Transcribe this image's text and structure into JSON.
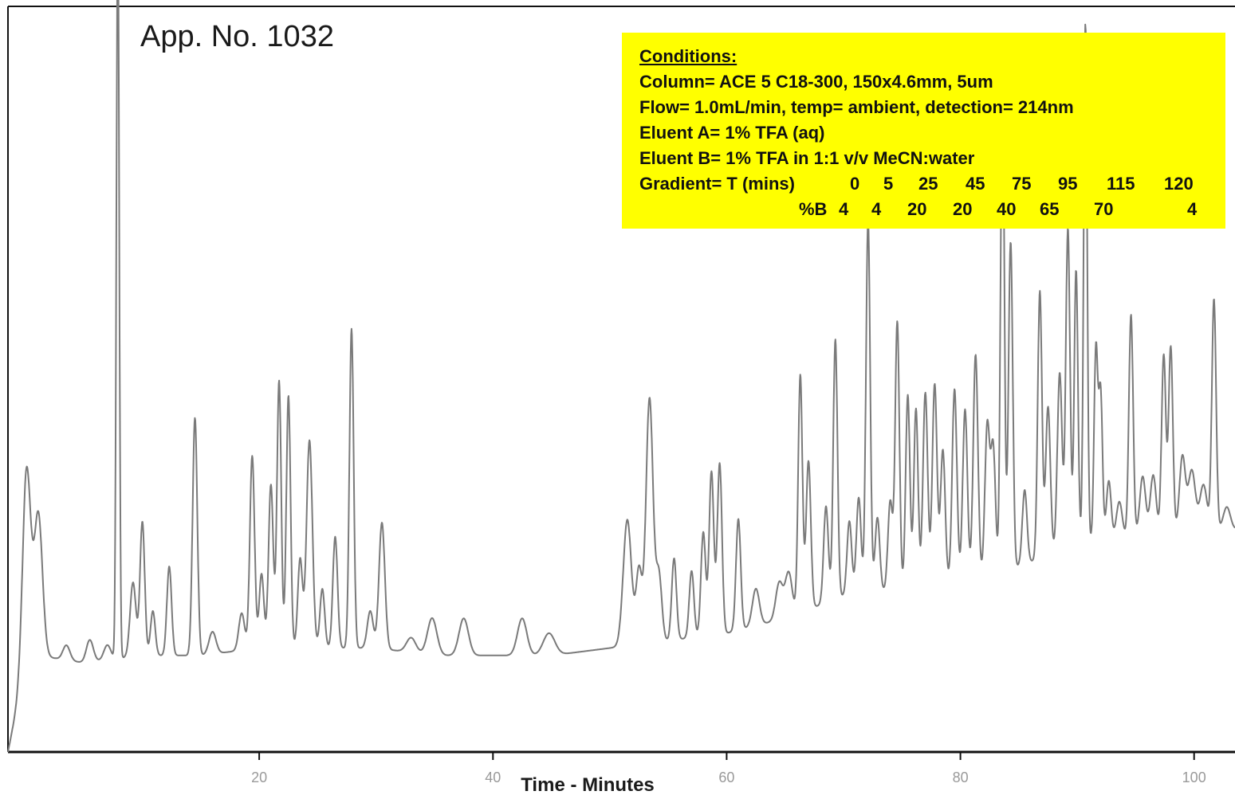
{
  "colors": {
    "trace": "#7a7a7a",
    "axis": "#111111",
    "box_bg": "#ffff00",
    "text": "#111111",
    "tick_label": "#9a9a9a"
  },
  "chart_data": {
    "type": "line",
    "title": "App. No. 1032",
    "xlabel": "Time - Minutes",
    "ylabel": "",
    "xlim": [
      -1.5,
      103.5
    ],
    "ylim": [
      0,
      1
    ],
    "x_ticks": [
      20,
      40,
      60,
      80,
      100
    ],
    "x_tick_labels": [
      "20",
      "40",
      "60",
      "80",
      "100"
    ],
    "grid": false,
    "baseline": [
      [
        -1.5,
        0.0
      ],
      [
        0,
        0.12
      ],
      [
        1,
        0.13
      ],
      [
        5,
        0.12
      ],
      [
        10,
        0.13
      ],
      [
        15,
        0.13
      ],
      [
        20,
        0.14
      ],
      [
        25,
        0.14
      ],
      [
        30,
        0.14
      ],
      [
        35,
        0.13
      ],
      [
        40,
        0.13
      ],
      [
        45,
        0.13
      ],
      [
        50,
        0.14
      ],
      [
        55,
        0.15
      ],
      [
        60,
        0.16
      ],
      [
        65,
        0.18
      ],
      [
        70,
        0.21
      ],
      [
        75,
        0.22
      ],
      [
        80,
        0.23
      ],
      [
        85,
        0.25
      ],
      [
        90,
        0.28
      ],
      [
        95,
        0.29
      ],
      [
        100,
        0.3
      ],
      [
        103.5,
        0.3
      ]
    ],
    "peaks": [
      {
        "t": 0.1,
        "h": 0.26,
        "w": 0.35
      },
      {
        "t": 1.1,
        "h": 0.19,
        "w": 0.35
      },
      {
        "t": 3.5,
        "h": 0.02,
        "w": 0.3
      },
      {
        "t": 5.5,
        "h": 0.03,
        "w": 0.3
      },
      {
        "t": 7.0,
        "h": 0.02,
        "w": 0.3
      },
      {
        "t": 7.9,
        "h": 1.0,
        "w": 0.12
      },
      {
        "t": 9.2,
        "h": 0.1,
        "w": 0.25
      },
      {
        "t": 10.0,
        "h": 0.18,
        "w": 0.2
      },
      {
        "t": 10.9,
        "h": 0.06,
        "w": 0.2
      },
      {
        "t": 12.3,
        "h": 0.12,
        "w": 0.2
      },
      {
        "t": 14.5,
        "h": 0.32,
        "w": 0.2
      },
      {
        "t": 16.0,
        "h": 0.03,
        "w": 0.3
      },
      {
        "t": 18.5,
        "h": 0.05,
        "w": 0.25
      },
      {
        "t": 19.4,
        "h": 0.26,
        "w": 0.2
      },
      {
        "t": 20.2,
        "h": 0.1,
        "w": 0.2
      },
      {
        "t": 21.0,
        "h": 0.22,
        "w": 0.2
      },
      {
        "t": 21.7,
        "h": 0.36,
        "w": 0.18
      },
      {
        "t": 22.5,
        "h": 0.34,
        "w": 0.18
      },
      {
        "t": 23.5,
        "h": 0.12,
        "w": 0.2
      },
      {
        "t": 24.3,
        "h": 0.28,
        "w": 0.25
      },
      {
        "t": 25.4,
        "h": 0.08,
        "w": 0.2
      },
      {
        "t": 26.5,
        "h": 0.15,
        "w": 0.2
      },
      {
        "t": 27.9,
        "h": 0.43,
        "w": 0.18
      },
      {
        "t": 29.5,
        "h": 0.05,
        "w": 0.25
      },
      {
        "t": 30.5,
        "h": 0.17,
        "w": 0.25
      },
      {
        "t": 33.0,
        "h": 0.02,
        "w": 0.4
      },
      {
        "t": 34.8,
        "h": 0.05,
        "w": 0.4
      },
      {
        "t": 37.5,
        "h": 0.05,
        "w": 0.4
      },
      {
        "t": 42.5,
        "h": 0.05,
        "w": 0.4
      },
      {
        "t": 44.8,
        "h": 0.03,
        "w": 0.5
      },
      {
        "t": 51.5,
        "h": 0.17,
        "w": 0.35
      },
      {
        "t": 52.5,
        "h": 0.1,
        "w": 0.25
      },
      {
        "t": 53.4,
        "h": 0.33,
        "w": 0.3
      },
      {
        "t": 54.2,
        "h": 0.09,
        "w": 0.25
      },
      {
        "t": 55.5,
        "h": 0.11,
        "w": 0.2
      },
      {
        "t": 57.0,
        "h": 0.09,
        "w": 0.2
      },
      {
        "t": 58.0,
        "h": 0.14,
        "w": 0.2
      },
      {
        "t": 58.7,
        "h": 0.22,
        "w": 0.2
      },
      {
        "t": 59.4,
        "h": 0.23,
        "w": 0.2
      },
      {
        "t": 61.0,
        "h": 0.15,
        "w": 0.2
      },
      {
        "t": 62.5,
        "h": 0.05,
        "w": 0.3
      },
      {
        "t": 64.5,
        "h": 0.05,
        "w": 0.3
      },
      {
        "t": 65.3,
        "h": 0.06,
        "w": 0.3
      },
      {
        "t": 66.3,
        "h": 0.32,
        "w": 0.18
      },
      {
        "t": 67.0,
        "h": 0.2,
        "w": 0.2
      },
      {
        "t": 68.5,
        "h": 0.13,
        "w": 0.2
      },
      {
        "t": 69.3,
        "h": 0.35,
        "w": 0.18
      },
      {
        "t": 70.5,
        "h": 0.1,
        "w": 0.2
      },
      {
        "t": 71.3,
        "h": 0.13,
        "w": 0.2
      },
      {
        "t": 72.1,
        "h": 0.5,
        "w": 0.18
      },
      {
        "t": 72.9,
        "h": 0.1,
        "w": 0.2
      },
      {
        "t": 74.0,
        "h": 0.12,
        "w": 0.2
      },
      {
        "t": 74.6,
        "h": 0.36,
        "w": 0.18
      },
      {
        "t": 75.5,
        "h": 0.26,
        "w": 0.18
      },
      {
        "t": 76.2,
        "h": 0.24,
        "w": 0.18
      },
      {
        "t": 77.0,
        "h": 0.26,
        "w": 0.2
      },
      {
        "t": 77.8,
        "h": 0.27,
        "w": 0.2
      },
      {
        "t": 78.5,
        "h": 0.18,
        "w": 0.2
      },
      {
        "t": 79.5,
        "h": 0.26,
        "w": 0.2
      },
      {
        "t": 80.4,
        "h": 0.23,
        "w": 0.2
      },
      {
        "t": 81.3,
        "h": 0.3,
        "w": 0.2
      },
      {
        "t": 82.3,
        "h": 0.2,
        "w": 0.2
      },
      {
        "t": 82.8,
        "h": 0.17,
        "w": 0.2
      },
      {
        "t": 83.6,
        "h": 0.66,
        "w": 0.16
      },
      {
        "t": 84.3,
        "h": 0.44,
        "w": 0.18
      },
      {
        "t": 85.5,
        "h": 0.1,
        "w": 0.2
      },
      {
        "t": 86.8,
        "h": 0.36,
        "w": 0.18
      },
      {
        "t": 87.5,
        "h": 0.2,
        "w": 0.2
      },
      {
        "t": 88.5,
        "h": 0.24,
        "w": 0.2
      },
      {
        "t": 89.2,
        "h": 0.43,
        "w": 0.18
      },
      {
        "t": 89.9,
        "h": 0.37,
        "w": 0.16
      },
      {
        "t": 90.7,
        "h": 0.7,
        "w": 0.15
      },
      {
        "t": 91.6,
        "h": 0.26,
        "w": 0.16
      },
      {
        "t": 92.0,
        "h": 0.2,
        "w": 0.16
      },
      {
        "t": 92.7,
        "h": 0.08,
        "w": 0.2
      },
      {
        "t": 93.6,
        "h": 0.05,
        "w": 0.25
      },
      {
        "t": 94.6,
        "h": 0.3,
        "w": 0.18
      },
      {
        "t": 95.6,
        "h": 0.08,
        "w": 0.25
      },
      {
        "t": 96.5,
        "h": 0.08,
        "w": 0.25
      },
      {
        "t": 97.4,
        "h": 0.24,
        "w": 0.18
      },
      {
        "t": 98.0,
        "h": 0.25,
        "w": 0.18
      },
      {
        "t": 99.0,
        "h": 0.1,
        "w": 0.25
      },
      {
        "t": 99.8,
        "h": 0.08,
        "w": 0.3
      },
      {
        "t": 100.8,
        "h": 0.06,
        "w": 0.3
      },
      {
        "t": 101.7,
        "h": 0.31,
        "w": 0.18
      },
      {
        "t": 102.8,
        "h": 0.03,
        "w": 0.3
      }
    ]
  },
  "conditions": {
    "heading": "Conditions:",
    "column": "Column= ACE 5 C18-300, 150x4.6mm, 5um",
    "flow": "Flow= 1.0mL/min, temp= ambient, detection= 214nm",
    "eluent_a": "Eluent A= 1% TFA (aq)",
    "eluent_b": "Eluent B= 1% TFA in 1:1 v/v MeCN:water",
    "gradient_label": "Gradient= T (mins)",
    "gradient_b_label": "%B",
    "gradient_times": [
      "0",
      "5",
      "25",
      "45",
      "75",
      "95",
      "115",
      "120"
    ],
    "gradient_b": [
      "4",
      "4",
      "20",
      "20",
      "40",
      "65",
      "70",
      "4"
    ]
  }
}
